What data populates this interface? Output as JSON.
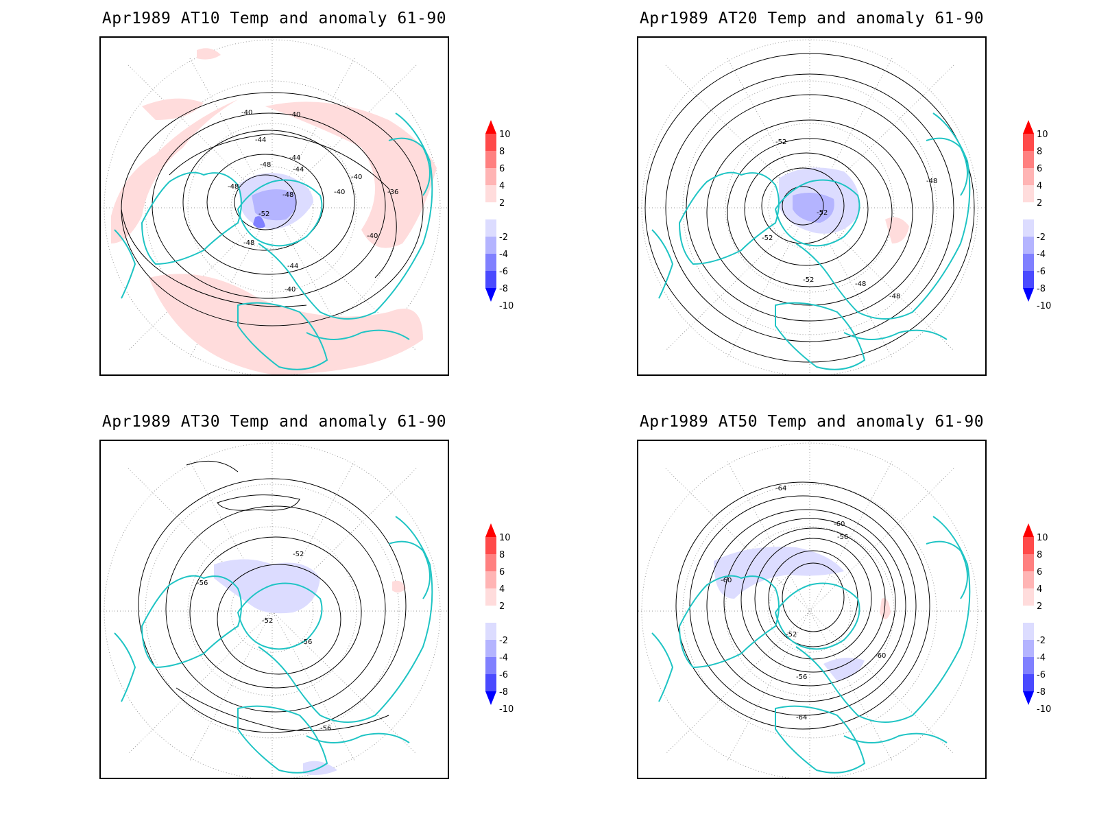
{
  "panels": [
    {
      "title": "Apr1989 AT10 Temp and anomaly 61-90",
      "contour_labels": [
        "-40",
        "-40",
        "-44",
        "-44",
        "-44",
        "-48",
        "-48",
        "-48",
        "-40",
        "-40",
        "-36",
        "-52",
        "-48",
        "-44",
        "-40",
        "-40"
      ]
    },
    {
      "title": "Apr1989 AT20 Temp and anomaly 61-90",
      "contour_labels": [
        "-52",
        "-48",
        "-52",
        "-52",
        "-52",
        "-48",
        "-48"
      ]
    },
    {
      "title": "Apr1989 AT30 Temp and anomaly 61-90",
      "contour_labels": [
        "-52",
        "-56",
        "-52",
        "-56",
        "-56"
      ]
    },
    {
      "title": "Apr1989 AT50 Temp and anomaly 61-90",
      "contour_labels": [
        "-64",
        "-60",
        "-56",
        "-60",
        "-52",
        "-60",
        "-56",
        "-64"
      ]
    }
  ],
  "colorbar": {
    "labels": [
      "10",
      "8",
      "6",
      "4",
      "2",
      "-2",
      "-4",
      "-6",
      "-8",
      "-10"
    ],
    "colors": [
      "#ff0000",
      "#ff4a4a",
      "#ff8080",
      "#ffb4b4",
      "#ffdcdc",
      "#ffffff",
      "#dcdcff",
      "#b4b4ff",
      "#8080ff",
      "#4a4aff",
      "#0000ff"
    ]
  },
  "coastline_color": "#1fc4c4",
  "anomaly_warm_color": "#ffdcdc",
  "anomaly_cold_color": "#dcdcff"
}
